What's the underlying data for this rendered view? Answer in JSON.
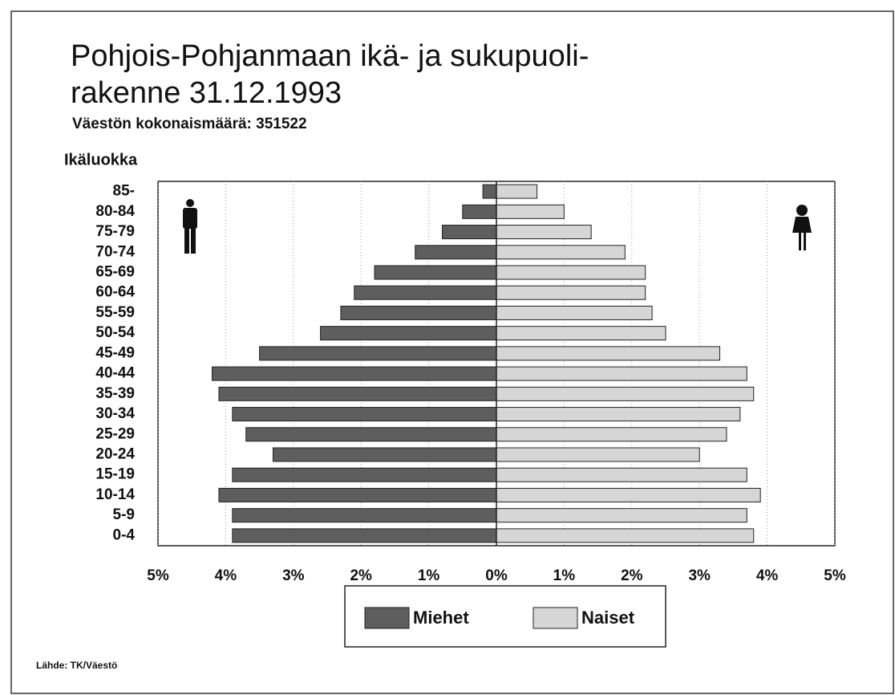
{
  "chart_data": {
    "type": "pyramid",
    "title_lines": [
      "Pohjois-Pohjanmaan ikä- ja sukupuoli-",
      "rakenne 31.12.1993"
    ],
    "subtitle": "Väestön kokonaismäärä: 351522",
    "y_label": "Ikäluokka",
    "source": "Lähde: TK/Väestö",
    "categories": [
      "85-",
      "80-84",
      "75-79",
      "70-74",
      "65-69",
      "60-64",
      "55-59",
      "50-54",
      "45-49",
      "40-44",
      "35-39",
      "30-34",
      "25-29",
      "20-24",
      "15-19",
      "10-14",
      "5-9",
      "0-4"
    ],
    "series": [
      {
        "name": "Miehet",
        "color": "#5e5e5e",
        "values": [
          -0.2,
          -0.5,
          -0.8,
          -1.2,
          -1.8,
          -2.1,
          -2.3,
          -2.6,
          -3.5,
          -4.2,
          -4.1,
          -3.9,
          -3.7,
          -3.3,
          -3.9,
          -4.1,
          -3.9,
          -3.9
        ]
      },
      {
        "name": "Naiset",
        "color": "#d6d6d6",
        "values": [
          0.6,
          1.0,
          1.4,
          1.9,
          2.2,
          2.2,
          2.3,
          2.5,
          3.3,
          3.7,
          3.8,
          3.6,
          3.4,
          3.0,
          3.7,
          3.9,
          3.7,
          3.8
        ]
      }
    ],
    "xlim": [
      -5,
      5
    ],
    "xticks": [
      {
        "value": -5,
        "label": "5%"
      },
      {
        "value": -4,
        "label": "4%"
      },
      {
        "value": -3,
        "label": "3%"
      },
      {
        "value": -2,
        "label": "2%"
      },
      {
        "value": -1,
        "label": "1%"
      },
      {
        "value": 0,
        "label": "0%"
      },
      {
        "value": 1,
        "label": "1%"
      },
      {
        "value": 2,
        "label": "2%"
      },
      {
        "value": 3,
        "label": "3%"
      },
      {
        "value": 4,
        "label": "4%"
      },
      {
        "value": 5,
        "label": "5%"
      }
    ],
    "grid": true
  }
}
